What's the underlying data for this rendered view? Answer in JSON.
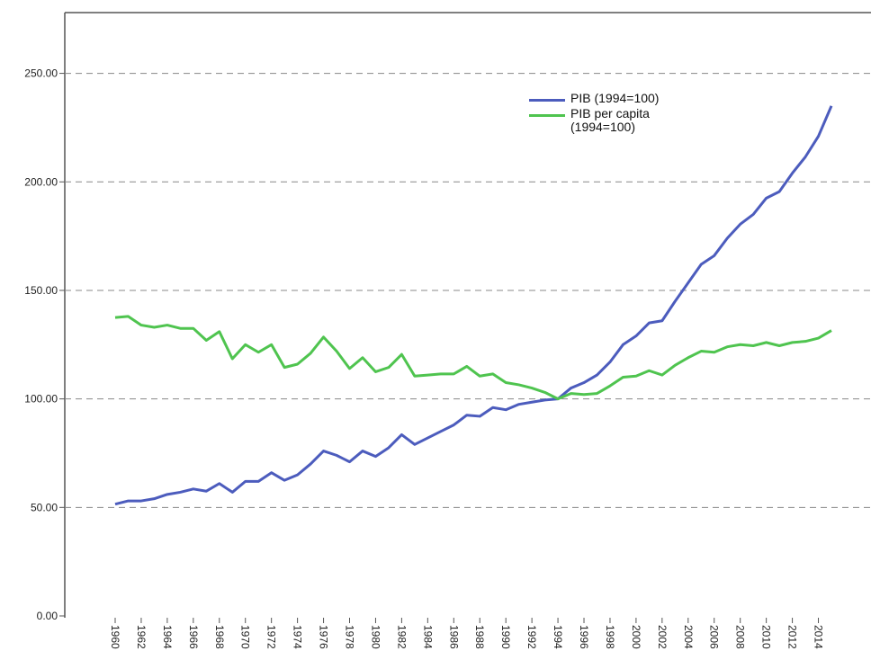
{
  "chart_data": {
    "type": "line",
    "categories": [
      "1960",
      null,
      "1962",
      null,
      "1964",
      null,
      "1966",
      null,
      "1968",
      null,
      "1970",
      null,
      "1972",
      null,
      "1974",
      null,
      "1976",
      null,
      "1978",
      null,
      "1980",
      null,
      "1982",
      null,
      "1984",
      null,
      "1986",
      null,
      "1988",
      null,
      "1990",
      null,
      "1992",
      null,
      "1994",
      null,
      "1996",
      null,
      "1998",
      null,
      "2000",
      null,
      "2002",
      null,
      "2004",
      null,
      "2006",
      null,
      "2008",
      null,
      "2010",
      null,
      "2012",
      null,
      "2014",
      null
    ],
    "series": [
      {
        "name": "PIB (1994=100)",
        "color": "#4c5cbd",
        "values": [
          51.5,
          53,
          53,
          54,
          56,
          57,
          58.5,
          57.5,
          61,
          57,
          62,
          62,
          66,
          62.5,
          65,
          70,
          76,
          74,
          71,
          76,
          73.5,
          77.5,
          83.5,
          79,
          82,
          85,
          88,
          92.5,
          92,
          96,
          95,
          97.5,
          98.5,
          99.5,
          100,
          105,
          107.5,
          111,
          117,
          125,
          129,
          135,
          136,
          145,
          153.5,
          162,
          166,
          174,
          180.5,
          185,
          192.5,
          195.5,
          204,
          211.5,
          221,
          235
        ]
      },
      {
        "name": "PIB per capita (1994=100)",
        "color": "#4fc44f",
        "values": [
          137.5,
          138,
          134,
          133,
          134,
          132.5,
          132.5,
          127,
          131,
          118.5,
          125,
          121.5,
          125,
          114.5,
          116,
          121,
          128.5,
          122,
          114,
          119,
          112.5,
          114.5,
          120.5,
          110.5,
          111,
          111.5,
          111.5,
          115,
          110.5,
          111.5,
          107.5,
          106.5,
          105,
          103,
          100,
          102.5,
          102,
          102.5,
          106,
          110,
          110.5,
          113,
          111,
          115.5,
          119,
          122,
          121.5,
          124,
          125,
          124.5,
          126,
          124.5,
          126,
          126.5,
          128,
          131.5
        ]
      }
    ],
    "ylim": [
      0,
      278
    ],
    "yticks": [
      {
        "value": 0,
        "label": "0.00"
      },
      {
        "value": 50,
        "label": "50.00"
      },
      {
        "value": 100,
        "label": "100.00"
      },
      {
        "value": 150,
        "label": "150.00"
      },
      {
        "value": 200,
        "label": "200.00"
      },
      {
        "value": 250,
        "label": "250.00"
      }
    ],
    "grid": true
  }
}
